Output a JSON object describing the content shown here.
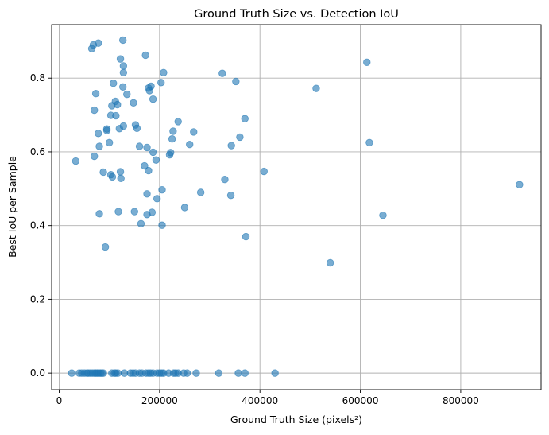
{
  "chart_data": {
    "type": "scatter",
    "title": "Ground Truth Size vs. Detection IoU",
    "xlabel": "Ground Truth Size (pixels²)",
    "ylabel": "Best IoU per Sample",
    "xlim": [
      -15000,
      960000
    ],
    "ylim": [
      -0.045,
      0.945
    ],
    "xticks": [
      0,
      200000,
      400000,
      600000,
      800000
    ],
    "xtick_labels": [
      "0",
      "200000",
      "400000",
      "600000",
      "800000"
    ],
    "yticks": [
      0.0,
      0.2,
      0.4,
      0.6,
      0.8
    ],
    "ytick_labels": [
      "0.0",
      "0.2",
      "0.4",
      "0.6",
      "0.8"
    ],
    "grid": true,
    "marker_color": "#1f77b4",
    "marker_alpha": 0.6,
    "points": [
      [
        65000,
        0.88
      ],
      [
        68000,
        0.89
      ],
      [
        78000,
        0.895
      ],
      [
        127000,
        0.903
      ],
      [
        122000,
        0.852
      ],
      [
        172000,
        0.862
      ],
      [
        128000,
        0.833
      ],
      [
        128000,
        0.815
      ],
      [
        208000,
        0.815
      ],
      [
        325000,
        0.813
      ],
      [
        613000,
        0.843
      ],
      [
        108000,
        0.786
      ],
      [
        127000,
        0.776
      ],
      [
        178000,
        0.773
      ],
      [
        180000,
        0.766
      ],
      [
        183000,
        0.778
      ],
      [
        203000,
        0.788
      ],
      [
        352000,
        0.791
      ],
      [
        512000,
        0.772
      ],
      [
        73000,
        0.758
      ],
      [
        135000,
        0.756
      ],
      [
        112000,
        0.737
      ],
      [
        148000,
        0.733
      ],
      [
        187000,
        0.743
      ],
      [
        105000,
        0.725
      ],
      [
        116000,
        0.728
      ],
      [
        70000,
        0.713
      ],
      [
        103000,
        0.699
      ],
      [
        113000,
        0.698
      ],
      [
        237000,
        0.682
      ],
      [
        370000,
        0.69
      ],
      [
        152000,
        0.673
      ],
      [
        128000,
        0.67
      ],
      [
        155000,
        0.664
      ],
      [
        120000,
        0.663
      ],
      [
        95000,
        0.658
      ],
      [
        95000,
        0.662
      ],
      [
        227000,
        0.656
      ],
      [
        268000,
        0.654
      ],
      [
        78000,
        0.65
      ],
      [
        360000,
        0.64
      ],
      [
        225000,
        0.635
      ],
      [
        100000,
        0.625
      ],
      [
        618000,
        0.625
      ],
      [
        80000,
        0.615
      ],
      [
        160000,
        0.615
      ],
      [
        260000,
        0.62
      ],
      [
        175000,
        0.612
      ],
      [
        343000,
        0.617
      ],
      [
        222000,
        0.598
      ],
      [
        187000,
        0.599
      ],
      [
        220000,
        0.592
      ],
      [
        70000,
        0.588
      ],
      [
        193000,
        0.578
      ],
      [
        33000,
        0.575
      ],
      [
        170000,
        0.562
      ],
      [
        178000,
        0.549
      ],
      [
        88000,
        0.545
      ],
      [
        122000,
        0.546
      ],
      [
        408000,
        0.547
      ],
      [
        103000,
        0.538
      ],
      [
        106000,
        0.532
      ],
      [
        123000,
        0.528
      ],
      [
        330000,
        0.525
      ],
      [
        917000,
        0.511
      ],
      [
        205000,
        0.497
      ],
      [
        282000,
        0.49
      ],
      [
        175000,
        0.486
      ],
      [
        342000,
        0.482
      ],
      [
        195000,
        0.473
      ],
      [
        250000,
        0.449
      ],
      [
        118000,
        0.438
      ],
      [
        150000,
        0.438
      ],
      [
        185000,
        0.436
      ],
      [
        175000,
        0.43
      ],
      [
        80000,
        0.432
      ],
      [
        645000,
        0.428
      ],
      [
        163000,
        0.405
      ],
      [
        205000,
        0.401
      ],
      [
        372000,
        0.37
      ],
      [
        92000,
        0.342
      ],
      [
        540000,
        0.299
      ],
      [
        25000,
        0
      ],
      [
        40000,
        0
      ],
      [
        45000,
        0
      ],
      [
        50000,
        0
      ],
      [
        55000,
        0
      ],
      [
        58000,
        0
      ],
      [
        62000,
        0
      ],
      [
        66000,
        0
      ],
      [
        70000,
        0
      ],
      [
        73000,
        0
      ],
      [
        76000,
        0
      ],
      [
        79000,
        0
      ],
      [
        82000,
        0
      ],
      [
        85000,
        0
      ],
      [
        88000,
        0
      ],
      [
        105000,
        0
      ],
      [
        110000,
        0
      ],
      [
        113000,
        0
      ],
      [
        117000,
        0
      ],
      [
        130000,
        0
      ],
      [
        142000,
        0
      ],
      [
        147000,
        0
      ],
      [
        152000,
        0
      ],
      [
        160000,
        0
      ],
      [
        165000,
        0
      ],
      [
        173000,
        0
      ],
      [
        178000,
        0
      ],
      [
        182000,
        0
      ],
      [
        187000,
        0
      ],
      [
        195000,
        0
      ],
      [
        200000,
        0
      ],
      [
        204000,
        0
      ],
      [
        208000,
        0
      ],
      [
        218000,
        0
      ],
      [
        228000,
        0
      ],
      [
        232000,
        0
      ],
      [
        237000,
        0
      ],
      [
        248000,
        0
      ],
      [
        255000,
        0
      ],
      [
        273000,
        0
      ],
      [
        318000,
        0
      ],
      [
        357000,
        0
      ],
      [
        370000,
        0
      ],
      [
        430000,
        0
      ]
    ]
  }
}
